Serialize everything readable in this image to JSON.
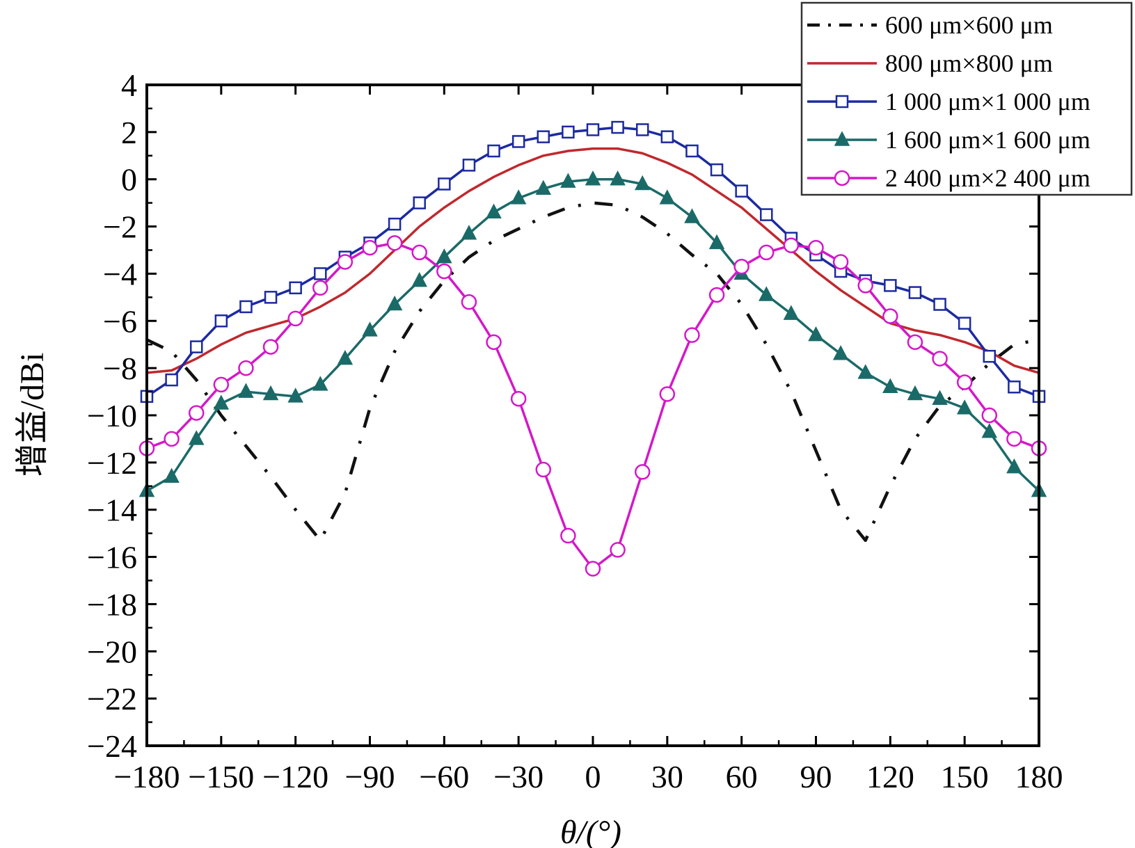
{
  "chart_data": {
    "type": "line",
    "title": "",
    "xlabel": "θ/(°)",
    "ylabel": "增益/dBi",
    "xlim": [
      -180,
      180
    ],
    "ylim": [
      -24,
      4
    ],
    "x_ticks": [
      -180,
      -150,
      -120,
      -90,
      -60,
      -30,
      0,
      30,
      60,
      90,
      120,
      150,
      180
    ],
    "x_tick_labels": [
      "−180",
      "−150",
      "−120",
      "−90",
      "−60",
      "−30",
      "0",
      "30",
      "60",
      "90",
      "120",
      "150",
      "180"
    ],
    "y_ticks": [
      4,
      2,
      0,
      -2,
      -4,
      -6,
      -8,
      -10,
      -12,
      -14,
      -16,
      -18,
      -20,
      -22,
      -24
    ],
    "y_tick_labels": [
      "4",
      "2",
      "0",
      "−2",
      "−4",
      "−6",
      "−8",
      "−10",
      "−12",
      "−14",
      "−16",
      "−18",
      "−20",
      "−22",
      "−24"
    ],
    "grid": false,
    "legend_position": "top-right",
    "series": [
      {
        "name": "600 μm×600 μm",
        "color": "#111111",
        "style": "dash-dot",
        "marker": "none",
        "x": [
          -180,
          -170,
          -160,
          -150,
          -140,
          -130,
          -120,
          -110,
          -100,
          -90,
          -80,
          -70,
          -60,
          -50,
          -40,
          -30,
          -20,
          -10,
          0,
          10,
          20,
          30,
          40,
          50,
          60,
          70,
          80,
          90,
          100,
          110,
          120,
          130,
          140,
          150,
          160,
          170,
          180
        ],
        "y": [
          -6.8,
          -7.3,
          -8.5,
          -10.0,
          -11.3,
          -12.6,
          -14.0,
          -15.3,
          -13.3,
          -9.7,
          -7.3,
          -5.6,
          -4.3,
          -3.3,
          -2.6,
          -2.1,
          -1.6,
          -1.2,
          -1.0,
          -1.1,
          -1.6,
          -2.3,
          -3.2,
          -4.0,
          -5.3,
          -7.0,
          -9.0,
          -11.5,
          -14.0,
          -15.3,
          -13.0,
          -11.0,
          -9.6,
          -8.8,
          -7.8,
          -7.0,
          -6.8
        ]
      },
      {
        "name": "800 μm×800 μm",
        "color": "#c0282d",
        "style": "solid",
        "marker": "none",
        "x": [
          -180,
          -170,
          -160,
          -150,
          -140,
          -130,
          -120,
          -110,
          -100,
          -90,
          -80,
          -70,
          -60,
          -50,
          -40,
          -30,
          -20,
          -10,
          0,
          10,
          20,
          30,
          40,
          50,
          60,
          70,
          80,
          90,
          100,
          110,
          120,
          130,
          140,
          150,
          160,
          170,
          180
        ],
        "y": [
          -8.2,
          -8.1,
          -7.6,
          -7.0,
          -6.5,
          -6.2,
          -5.9,
          -5.4,
          -4.8,
          -4.0,
          -3.0,
          -2.0,
          -1.2,
          -0.5,
          0.1,
          0.6,
          1.0,
          1.2,
          1.3,
          1.3,
          1.1,
          0.7,
          0.2,
          -0.5,
          -1.2,
          -2.1,
          -3.0,
          -3.9,
          -4.7,
          -5.4,
          -6.1,
          -6.4,
          -6.6,
          -6.9,
          -7.3,
          -7.9,
          -8.2
        ]
      },
      {
        "name": "1 000 μm×1 000 μm",
        "color": "#1c2aa0",
        "style": "solid",
        "marker": "square",
        "x": [
          -180,
          -170,
          -160,
          -150,
          -140,
          -130,
          -120,
          -110,
          -100,
          -90,
          -80,
          -70,
          -60,
          -50,
          -40,
          -30,
          -20,
          -10,
          0,
          10,
          20,
          30,
          40,
          50,
          60,
          70,
          80,
          90,
          100,
          110,
          120,
          130,
          140,
          150,
          160,
          170,
          180
        ],
        "y": [
          -9.2,
          -8.5,
          -7.1,
          -6.0,
          -5.4,
          -5.0,
          -4.6,
          -4.0,
          -3.3,
          -2.7,
          -1.9,
          -1.0,
          -0.2,
          0.6,
          1.2,
          1.6,
          1.8,
          2.0,
          2.1,
          2.2,
          2.1,
          1.8,
          1.2,
          0.4,
          -0.5,
          -1.5,
          -2.5,
          -3.2,
          -3.9,
          -4.3,
          -4.5,
          -4.8,
          -5.3,
          -6.1,
          -7.5,
          -8.8,
          -9.2
        ]
      },
      {
        "name": "1 600 μm×1 600 μm",
        "color": "#1a6a68",
        "style": "solid",
        "marker": "triangle",
        "x": [
          -180,
          -170,
          -160,
          -150,
          -140,
          -130,
          -120,
          -110,
          -100,
          -90,
          -80,
          -70,
          -60,
          -50,
          -40,
          -30,
          -20,
          -10,
          0,
          10,
          20,
          30,
          40,
          50,
          60,
          70,
          80,
          90,
          100,
          110,
          120,
          130,
          140,
          150,
          160,
          170,
          180
        ],
        "y": [
          -13.2,
          -12.6,
          -11.0,
          -9.5,
          -9.0,
          -9.1,
          -9.2,
          -8.7,
          -7.6,
          -6.4,
          -5.3,
          -4.3,
          -3.3,
          -2.3,
          -1.4,
          -0.8,
          -0.4,
          -0.1,
          0.0,
          0.0,
          -0.2,
          -0.8,
          -1.6,
          -2.7,
          -4.0,
          -4.9,
          -5.7,
          -6.6,
          -7.4,
          -8.2,
          -8.8,
          -9.1,
          -9.3,
          -9.7,
          -10.7,
          -12.2,
          -13.2
        ]
      },
      {
        "name": "2 400 μm×2 400 μm",
        "color": "#d418c8",
        "style": "solid",
        "marker": "circle",
        "x": [
          -180,
          -170,
          -160,
          -150,
          -140,
          -130,
          -120,
          -110,
          -100,
          -90,
          -80,
          -70,
          -60,
          -50,
          -40,
          -30,
          -20,
          -10,
          0,
          10,
          20,
          30,
          40,
          50,
          60,
          70,
          80,
          90,
          100,
          110,
          120,
          130,
          140,
          150,
          160,
          170,
          180
        ],
        "y": [
          -11.4,
          -11.0,
          -9.9,
          -8.7,
          -8.0,
          -7.1,
          -5.9,
          -4.6,
          -3.5,
          -2.9,
          -2.7,
          -3.1,
          -3.9,
          -5.2,
          -6.9,
          -9.3,
          -12.3,
          -15.1,
          -16.5,
          -15.7,
          -12.4,
          -9.1,
          -6.6,
          -4.9,
          -3.7,
          -3.1,
          -2.8,
          -2.9,
          -3.5,
          -4.5,
          -5.8,
          -6.9,
          -7.6,
          -8.6,
          -10.0,
          -11.0,
          -11.4
        ]
      }
    ]
  }
}
